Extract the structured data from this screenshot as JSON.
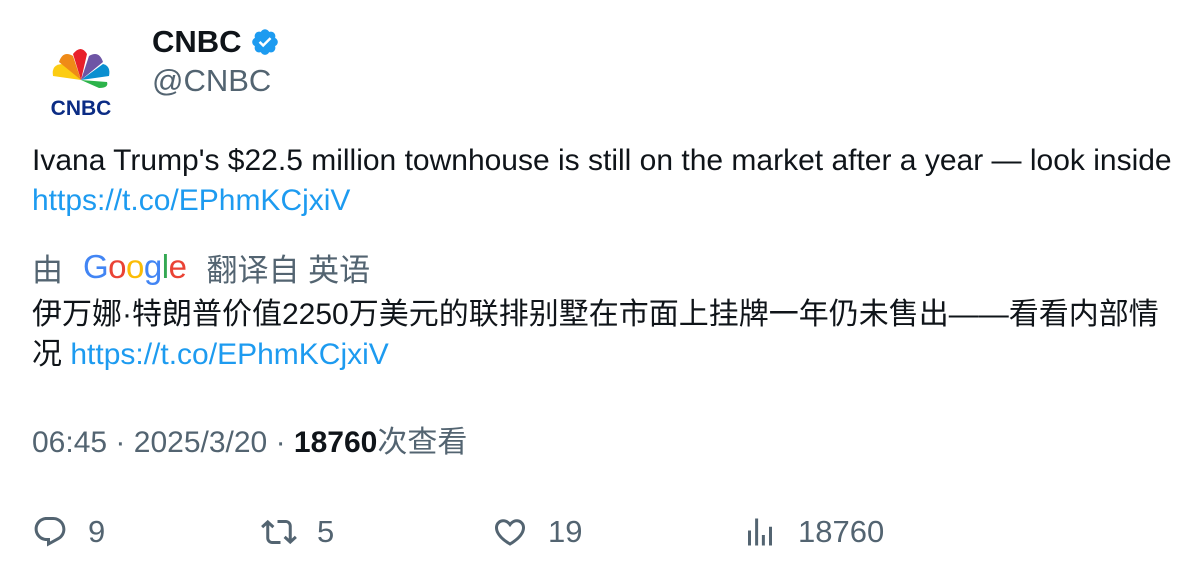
{
  "author": {
    "display_name": "CNBC",
    "handle": "@CNBC",
    "avatar_logo_text": "CNBC",
    "verified_badge_color": "#1d9bf0"
  },
  "tweet": {
    "text": "Ivana Trump's $22.5 million townhouse is still on the market after a year — look inside",
    "link": "https://t.co/EPhmKCjxiV"
  },
  "translation": {
    "prefix": "由",
    "provider": "Google",
    "suffix": "翻译自 英语",
    "text": "伊万娜·特朗普价值2250万美元的联排别墅在市面上挂牌一年仍未售出——看看内部情况",
    "link": "https://t.co/EPhmKCjxiV"
  },
  "meta": {
    "time": "06:45",
    "separator": "·",
    "date": "2025/3/20",
    "views_count": "18760",
    "views_label": "次查看"
  },
  "actions": {
    "replies": "9",
    "retweets": "5",
    "likes": "19",
    "views": "18760"
  },
  "colors": {
    "text": "#0f1419",
    "secondary": "#536471",
    "link": "#1d9bf0"
  }
}
